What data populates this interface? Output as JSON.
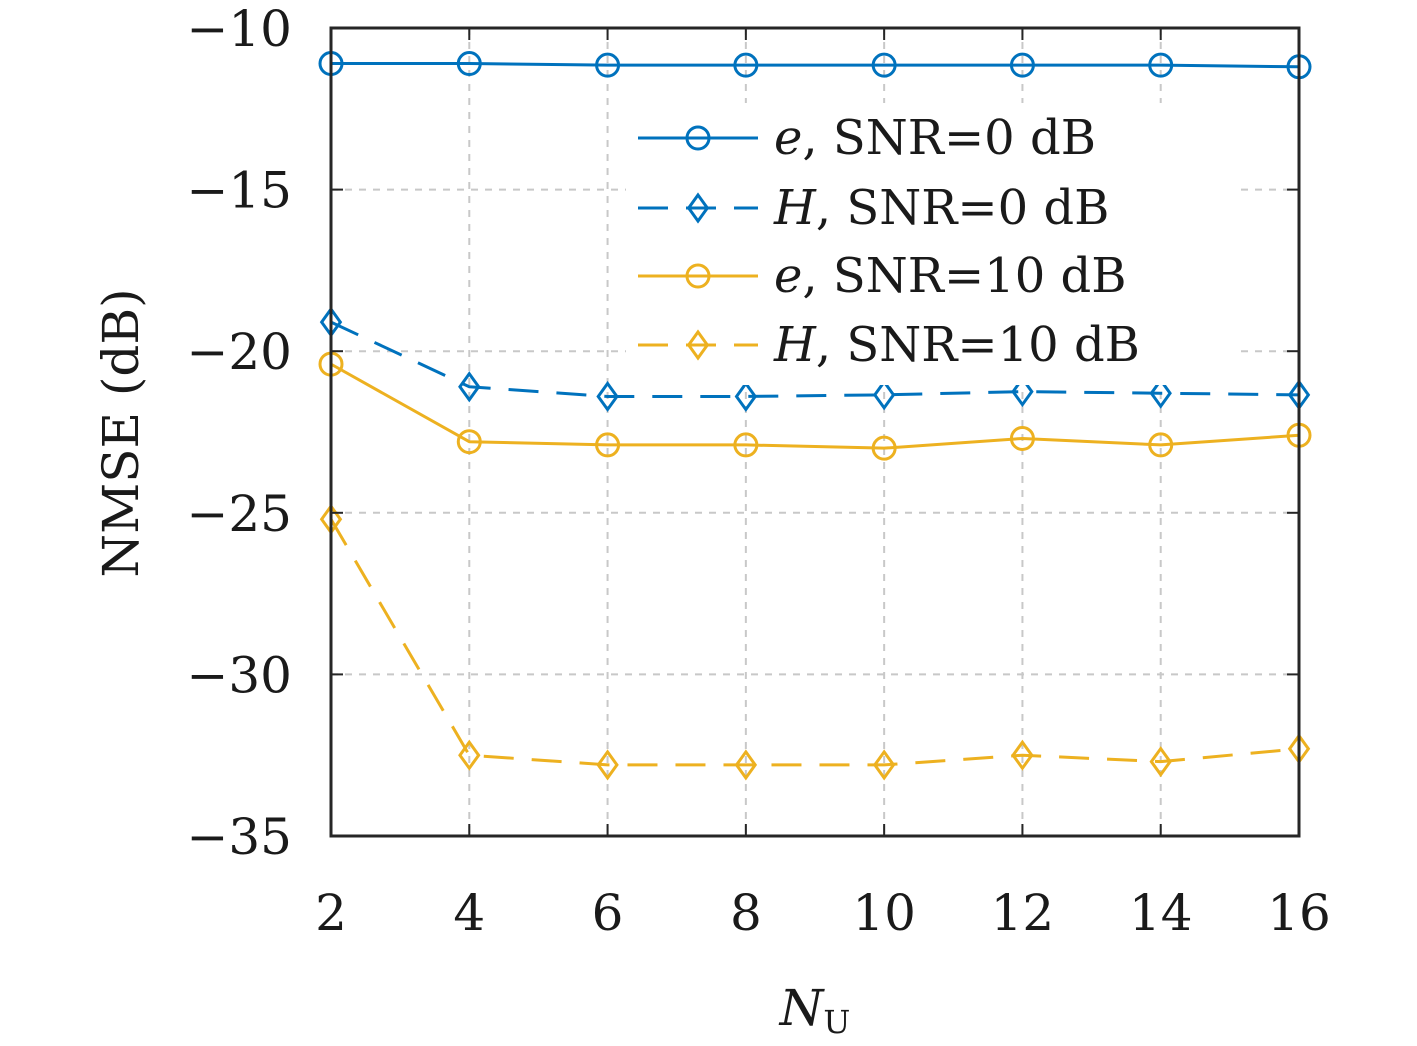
{
  "chart_data": {
    "type": "line",
    "xlabel": {
      "main": "N",
      "sub": "U"
    },
    "ylabel": "NMSE (dB)",
    "xlim": [
      2,
      16
    ],
    "ylim": [
      -35,
      -10
    ],
    "xticks": [
      2,
      4,
      6,
      8,
      10,
      12,
      14,
      16
    ],
    "yticks": [
      -10,
      -15,
      -20,
      -25,
      -30,
      -35
    ],
    "ytick_labels": [
      "−10",
      "−15",
      "−20",
      "−25",
      "−30",
      "−35"
    ],
    "grid": true,
    "legend_position": "top-right",
    "x": [
      2,
      4,
      6,
      8,
      10,
      12,
      14,
      16
    ],
    "series": [
      {
        "name_var": "e",
        "name_rest": ", SNR=0 dB",
        "color": "#0072BD",
        "line": "solid",
        "marker": "circle",
        "values": [
          -11.1,
          -11.1,
          -11.15,
          -11.15,
          -11.15,
          -11.15,
          -11.15,
          -11.2
        ]
      },
      {
        "name_var": "H",
        "name_rest": ", SNR=0 dB",
        "color": "#0072BD",
        "line": "dashed",
        "marker": "diamond",
        "values": [
          -19.1,
          -21.1,
          -21.4,
          -21.4,
          -21.35,
          -21.25,
          -21.3,
          -21.35
        ]
      },
      {
        "name_var": "e",
        "name_rest": ", SNR=10 dB",
        "color": "#EDB120",
        "line": "solid",
        "marker": "circle",
        "values": [
          -20.4,
          -22.8,
          -22.9,
          -22.9,
          -23.0,
          -22.7,
          -22.9,
          -22.6
        ]
      },
      {
        "name_var": "H",
        "name_rest": ", SNR=10 dB",
        "color": "#EDB120",
        "line": "dashed",
        "marker": "diamond",
        "values": [
          -25.2,
          -32.5,
          -32.8,
          -32.8,
          -32.8,
          -32.5,
          -32.7,
          -32.3
        ]
      }
    ]
  }
}
